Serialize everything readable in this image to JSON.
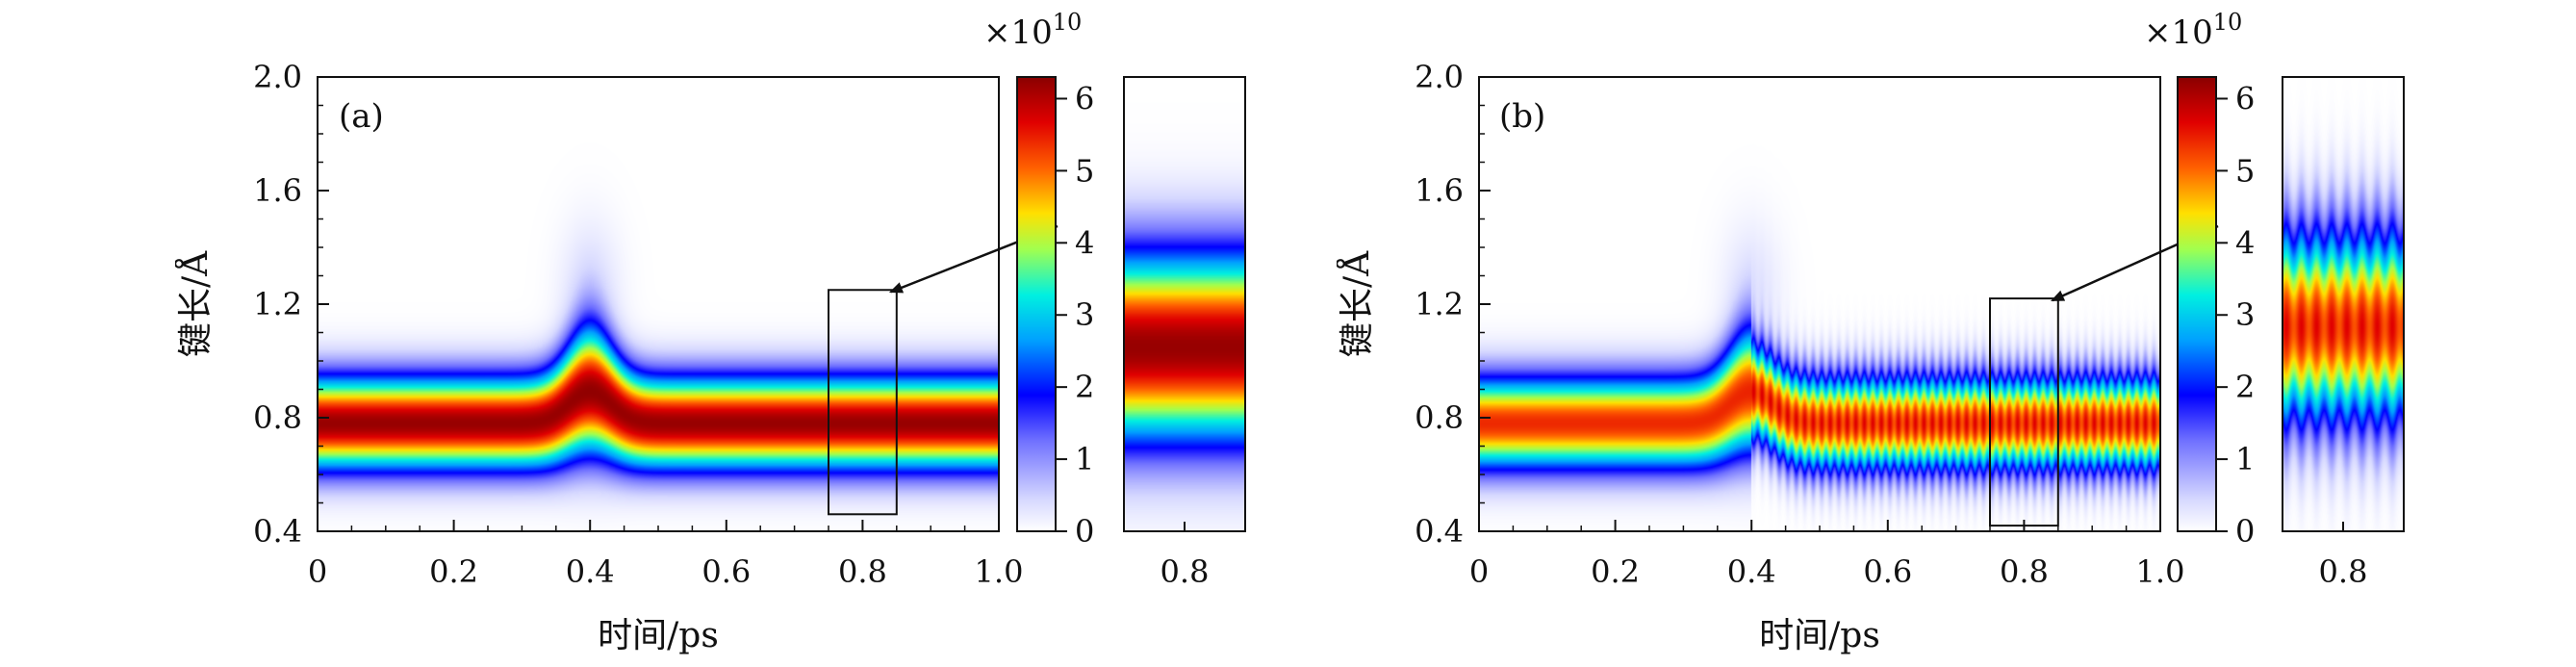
{
  "chart_data": [
    {
      "type": "heatmap",
      "panel_label": "(a)",
      "xlabel": "时间/ps",
      "ylabel": "键长/Å",
      "xlim": [
        0,
        1.0
      ],
      "ylim": [
        0.4,
        2.0
      ],
      "x_ticks": [
        "0",
        "0.2",
        "0.4",
        "0.6",
        "0.8",
        "1.0"
      ],
      "y_ticks": [
        "0.4",
        "0.8",
        "1.2",
        "1.6",
        "2.0"
      ],
      "colorbar": {
        "multiplier": "×10",
        "exponent": "10",
        "ticks": [
          "0",
          "1",
          "2",
          "3",
          "4",
          "5",
          "6"
        ],
        "range": [
          0,
          6.3
        ],
        "colormap": "jet-like (white → blue → cyan → yellow → red → dark red)"
      },
      "band": {
        "center": 0.78,
        "width": 0.16,
        "peak": 6.2
      },
      "disturbance": {
        "time": 0.4,
        "center_shift": 0.2
      },
      "oscillation": false,
      "inset_box": {
        "x": [
          0.75,
          0.85
        ],
        "y": [
          0.46,
          1.25
        ]
      },
      "zoom": {
        "x_ticks": [
          "0.8"
        ]
      }
    },
    {
      "type": "heatmap",
      "panel_label": "(b)",
      "xlabel": "时间/ps",
      "ylabel": "键长/Å",
      "xlim": [
        0,
        1.0
      ],
      "ylim": [
        0.4,
        2.0
      ],
      "x_ticks": [
        "0",
        "0.2",
        "0.4",
        "0.6",
        "0.8",
        "1.0"
      ],
      "y_ticks": [
        "0.4",
        "0.8",
        "1.2",
        "1.6",
        "2.0"
      ],
      "colorbar": {
        "multiplier": "×10",
        "exponent": "10",
        "ticks": [
          "0",
          "1",
          "2",
          "3",
          "4",
          "5",
          "6"
        ],
        "range": [
          0,
          6.3
        ],
        "colormap": "jet-like (white → blue → cyan → yellow → red → dark red)"
      },
      "band": {
        "center": 0.78,
        "width": 0.16,
        "peak": 5.4
      },
      "disturbance": {
        "time": 0.4,
        "center_shift": 0.2
      },
      "oscillation": true,
      "inset_box": {
        "x": [
          0.75,
          0.85
        ],
        "y": [
          0.42,
          1.22
        ]
      },
      "zoom": {
        "x_ticks": [
          "0.8"
        ]
      }
    }
  ]
}
